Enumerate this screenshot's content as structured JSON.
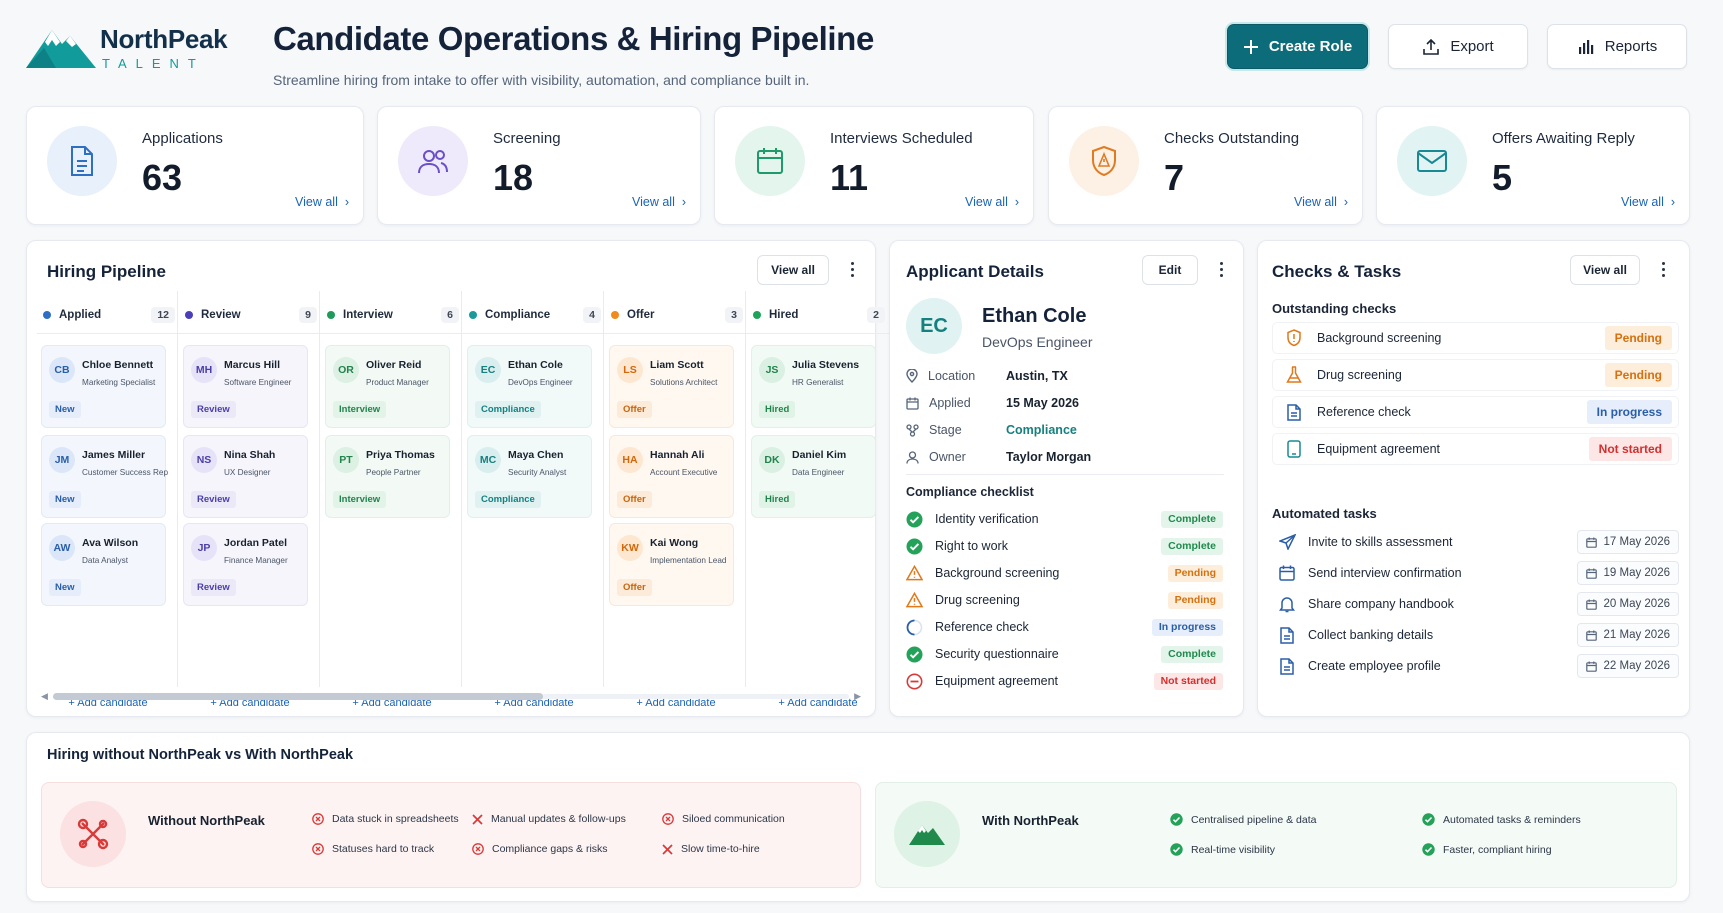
{
  "brand": {
    "name": "NorthPeak",
    "sub": "TALENT"
  },
  "page": {
    "title": "Candidate Operations & Hiring Pipeline",
    "subtitle": "Streamline hiring from intake to offer with visibility, automation, and compliance built in."
  },
  "actions": {
    "create": "Create Role",
    "export": "Export",
    "reports": "Reports"
  },
  "stats": [
    {
      "label": "Applications",
      "value": "63",
      "link": "View all",
      "icon": "document-icon",
      "color": "#2f6fc1",
      "bg": "#e7f0fb"
    },
    {
      "label": "Screening",
      "value": "18",
      "link": "View all",
      "icon": "users-icon",
      "color": "#6a4fc8",
      "bg": "#efeafb"
    },
    {
      "label": "Interviews Scheduled",
      "value": "11",
      "link": "View all",
      "icon": "calendar-icon",
      "color": "#1f9a6a",
      "bg": "#e4f5ee"
    },
    {
      "label": "Checks Outstanding",
      "value": "7",
      "link": "View all",
      "icon": "shield-alert-icon",
      "color": "#e07b22",
      "bg": "#fdf0e4"
    },
    {
      "label": "Offers Awaiting Reply",
      "value": "5",
      "link": "View all",
      "icon": "mail-icon",
      "color": "#178a93",
      "bg": "#e2f3f4"
    }
  ],
  "pipeline": {
    "title": "Hiring Pipeline",
    "view_all": "View all",
    "add": "+ Add candidate",
    "columns": [
      {
        "name": "Applied",
        "count": "12",
        "dot": "#2f6fc1",
        "bg": "#f3f7fd",
        "border": "#e2eaf6",
        "tagbg": "#e4edf9",
        "tagfg": "#2a5ea8",
        "avbg": "#dbe7f8",
        "avfg": "#2a5ea8",
        "cards": [
          {
            "initials": "CB",
            "name": "Chloe Bennett",
            "role": "Marketing Specialist",
            "tag": "New"
          },
          {
            "initials": "JM",
            "name": "James Miller",
            "role": "Customer Success Rep",
            "tag": "New"
          },
          {
            "initials": "AW",
            "name": "Ava Wilson",
            "role": "Data Analyst",
            "tag": "New"
          }
        ]
      },
      {
        "name": "Review",
        "count": "9",
        "dot": "#4b3fb8",
        "bg": "#f6f5fc",
        "border": "#e8e6f6",
        "tagbg": "#ebe8f8",
        "tagfg": "#4a3fa8",
        "avbg": "#e6e2f8",
        "avfg": "#4a3fa8",
        "cards": [
          {
            "initials": "MH",
            "name": "Marcus Hill",
            "role": "Software Engineer",
            "tag": "Review"
          },
          {
            "initials": "NS",
            "name": "Nina Shah",
            "role": "UX Designer",
            "tag": "Review"
          },
          {
            "initials": "JP",
            "name": "Jordan Patel",
            "role": "Finance Manager",
            "tag": "Review"
          }
        ]
      },
      {
        "name": "Interview",
        "count": "6",
        "dot": "#1f9a5a",
        "bg": "#f3faf5",
        "border": "#e1f0e6",
        "tagbg": "#e2f3e8",
        "tagfg": "#23834d",
        "avbg": "#dcf0e3",
        "avfg": "#23834d",
        "cards": [
          {
            "initials": "OR",
            "name": "Oliver Reid",
            "role": "Product Manager",
            "tag": "Interview"
          },
          {
            "initials": "PT",
            "name": "Priya Thomas",
            "role": "People Partner",
            "tag": "Interview"
          }
        ]
      },
      {
        "name": "Compliance",
        "count": "4",
        "dot": "#1a9a9a",
        "bg": "#f2f9f9",
        "border": "#dff0f0",
        "tagbg": "#dff1f1",
        "tagfg": "#16807f",
        "avbg": "#d9eeee",
        "avfg": "#16807f",
        "cards": [
          {
            "initials": "EC",
            "name": "Ethan Cole",
            "role": "DevOps Engineer",
            "tag": "Compliance"
          },
          {
            "initials": "MC",
            "name": "Maya Chen",
            "role": "Security Analyst",
            "tag": "Compliance"
          }
        ]
      },
      {
        "name": "Offer",
        "count": "3",
        "dot": "#f08a1c",
        "bg": "#fef8f1",
        "border": "#f7e9d8",
        "tagbg": "#fcebd8",
        "tagfg": "#c8650f",
        "avbg": "#fde7d0",
        "avfg": "#d2680c",
        "cards": [
          {
            "initials": "LS",
            "name": "Liam Scott",
            "role": "Solutions Architect",
            "tag": "Offer"
          },
          {
            "initials": "HA",
            "name": "Hannah Ali",
            "role": "Account Executive",
            "tag": "Offer"
          },
          {
            "initials": "KW",
            "name": "Kai Wong",
            "role": "Implementation Lead",
            "tag": "Offer"
          }
        ]
      },
      {
        "name": "Hired",
        "count": "2",
        "dot": "#1fa35a",
        "bg": "#f2faf5",
        "border": "#e0f1e7",
        "tagbg": "#e0f3e7",
        "tagfg": "#23834d",
        "avbg": "#daf0e2",
        "avfg": "#23834d",
        "cards": [
          {
            "initials": "JS",
            "name": "Julia Stevens",
            "role": "HR Generalist",
            "tag": "Hired"
          },
          {
            "initials": "DK",
            "name": "Daniel Kim",
            "role": "Data Engineer",
            "tag": "Hired"
          }
        ]
      }
    ]
  },
  "applicant": {
    "title": "Applicant Details",
    "edit": "Edit",
    "initials": "EC",
    "name": "Ethan Cole",
    "role": "DevOps Engineer",
    "fields": [
      {
        "label": "Location",
        "value": "Austin, TX",
        "icon": "pin-icon"
      },
      {
        "label": "Applied",
        "value": "15 May 2026",
        "icon": "calendar-icon"
      },
      {
        "label": "Stage",
        "value": "Compliance",
        "icon": "flow-icon"
      },
      {
        "label": "Owner",
        "value": "Taylor Morgan",
        "icon": "person-icon"
      }
    ],
    "checklist_title": "Compliance checklist",
    "checklist": [
      {
        "label": "Identity verification",
        "status": "Complete",
        "kind": "complete"
      },
      {
        "label": "Right to work",
        "status": "Complete",
        "kind": "complete"
      },
      {
        "label": "Background screening",
        "status": "Pending",
        "kind": "pending"
      },
      {
        "label": "Drug screening",
        "status": "Pending",
        "kind": "pending"
      },
      {
        "label": "Reference check",
        "status": "In progress",
        "kind": "progress"
      },
      {
        "label": "Security questionnaire",
        "status": "Complete",
        "kind": "complete"
      },
      {
        "label": "Equipment agreement",
        "status": "Not started",
        "kind": "notstarted"
      }
    ]
  },
  "checks": {
    "title": "Checks & Tasks",
    "view_all": "View all",
    "outstanding_title": "Outstanding checks",
    "outstanding": [
      {
        "label": "Background screening",
        "status": "Pending",
        "kind": "pending",
        "icon": "shield-icon"
      },
      {
        "label": "Drug screening",
        "status": "Pending",
        "kind": "pending",
        "icon": "flask-icon"
      },
      {
        "label": "Reference check",
        "status": "In progress",
        "kind": "progress",
        "icon": "document-icon"
      },
      {
        "label": "Equipment agreement",
        "status": "Not started",
        "kind": "notstarted",
        "icon": "device-icon"
      }
    ],
    "tasks_title": "Automated tasks",
    "tasks": [
      {
        "label": "Invite to skills assessment",
        "date": "17 May 2026",
        "icon": "send-icon"
      },
      {
        "label": "Send interview confirmation",
        "date": "19 May 2026",
        "icon": "calendar-icon"
      },
      {
        "label": "Share company handbook",
        "date": "20 May 2026",
        "icon": "bell-icon"
      },
      {
        "label": "Collect banking details",
        "date": "21 May 2026",
        "icon": "document-icon"
      },
      {
        "label": "Create employee profile",
        "date": "22 May 2026",
        "icon": "document-icon"
      }
    ]
  },
  "comparison": {
    "title": "Hiring without NorthPeak vs With NorthPeak",
    "without": {
      "title": "Without NorthPeak",
      "points": [
        "Data stuck in spreadsheets",
        "Manual updates & follow-ups",
        "Siloed communication",
        "Statuses hard to track",
        "Compliance gaps & risks",
        "Slow time-to-hire"
      ]
    },
    "with": {
      "title": "With NorthPeak",
      "points": [
        "Centralised pipeline & data",
        "Automated tasks & reminders",
        "Real-time visibility",
        "Faster, compliant hiring"
      ]
    }
  },
  "colors": {
    "primary": "#0d6c79",
    "link": "#1b63b4",
    "complete_bg": "#e3f5ea",
    "complete_fg": "#1f8a4c",
    "pending_bg": "#fdeedc",
    "pending_fg": "#d7700f",
    "progress_bg": "#e6eefb",
    "progress_fg": "#2a5ea8",
    "notstarted_bg": "#fde6e6",
    "notstarted_fg": "#d32f2f"
  }
}
